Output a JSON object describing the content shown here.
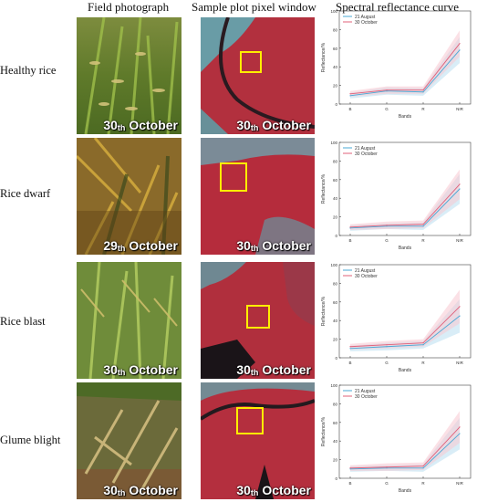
{
  "headers": {
    "photo": "Field photograph",
    "window": "Sample plot pixel window",
    "curve": "Spectral reflectance curve"
  },
  "colors": {
    "aug_line": "#4aa9d6",
    "oct_line": "#e0607a",
    "aug_band": "#b9dff0",
    "oct_band": "#f7c9d2",
    "window_box": "#ffee00"
  },
  "rows": [
    {
      "label": "Healthy rice",
      "photo_date_day": "30",
      "photo_date_suffix": "th",
      "photo_date_month": "October",
      "sat_date_day": "30",
      "sat_date_suffix": "th",
      "sat_date_month": "October"
    },
    {
      "label": "Rice dwarf",
      "photo_date_day": "29",
      "photo_date_suffix": "th",
      "photo_date_month": "October",
      "sat_date_day": "30",
      "sat_date_suffix": "th",
      "sat_date_month": "October"
    },
    {
      "label": "Rice blast",
      "photo_date_day": "30",
      "photo_date_suffix": "th",
      "photo_date_month": "October",
      "sat_date_day": "30",
      "sat_date_suffix": "th",
      "sat_date_month": "October"
    },
    {
      "label": "Glume blight",
      "photo_date_day": "30",
      "photo_date_suffix": "th",
      "photo_date_month": "October",
      "sat_date_day": "30",
      "sat_date_suffix": "th",
      "sat_date_month": "October"
    }
  ],
  "chart_data": [
    {
      "type": "line",
      "categories": [
        "B",
        "G",
        "R",
        "NIR"
      ],
      "ylabel": "Reflectance/%",
      "xlabel": "Bands",
      "ylim": [
        0,
        100
      ],
      "yticks": [
        0,
        20,
        40,
        60,
        80,
        100
      ],
      "legend": "top-left",
      "series": [
        {
          "name": "21 August",
          "values": [
            9,
            14,
            13,
            58
          ],
          "spread": [
            3,
            4,
            4,
            14
          ]
        },
        {
          "name": "30 October",
          "values": [
            11,
            15,
            15,
            65
          ],
          "spread": [
            3,
            4,
            4,
            14
          ]
        }
      ]
    },
    {
      "type": "line",
      "categories": [
        "B",
        "G",
        "R",
        "NIR"
      ],
      "ylabel": "Reflectance/%",
      "xlabel": "Bands",
      "ylim": [
        0,
        100
      ],
      "yticks": [
        0,
        20,
        40,
        60,
        80,
        100
      ],
      "legend": "top-left",
      "series": [
        {
          "name": "21 August",
          "values": [
            8,
            10,
            10,
            50
          ],
          "spread": [
            3,
            3,
            4,
            16
          ]
        },
        {
          "name": "30 October",
          "values": [
            9,
            11,
            12,
            55
          ],
          "spread": [
            3,
            4,
            4,
            16
          ]
        }
      ]
    },
    {
      "type": "line",
      "categories": [
        "B",
        "G",
        "R",
        "NIR"
      ],
      "ylabel": "Reflectance/%",
      "xlabel": "Bands",
      "ylim": [
        0,
        100
      ],
      "yticks": [
        0,
        20,
        40,
        60,
        80,
        100
      ],
      "legend": "top-left",
      "series": [
        {
          "name": "21 August",
          "values": [
            10,
            12,
            14,
            45
          ],
          "spread": [
            3,
            4,
            4,
            18
          ]
        },
        {
          "name": "30 October",
          "values": [
            12,
            14,
            16,
            55
          ],
          "spread": [
            3,
            4,
            4,
            18
          ]
        }
      ]
    },
    {
      "type": "line",
      "categories": [
        "B",
        "G",
        "R",
        "NIR"
      ],
      "ylabel": "Reflectance/%",
      "xlabel": "Bands",
      "ylim": [
        0,
        100
      ],
      "yticks": [
        0,
        20,
        40,
        60,
        80,
        100
      ],
      "legend": "top-left",
      "series": [
        {
          "name": "21 August",
          "values": [
            10,
            11,
            11,
            48
          ],
          "spread": [
            3,
            3,
            4,
            17
          ]
        },
        {
          "name": "30 October",
          "values": [
            11,
            12,
            13,
            55
          ],
          "spread": [
            3,
            4,
            4,
            17
          ]
        }
      ]
    }
  ]
}
